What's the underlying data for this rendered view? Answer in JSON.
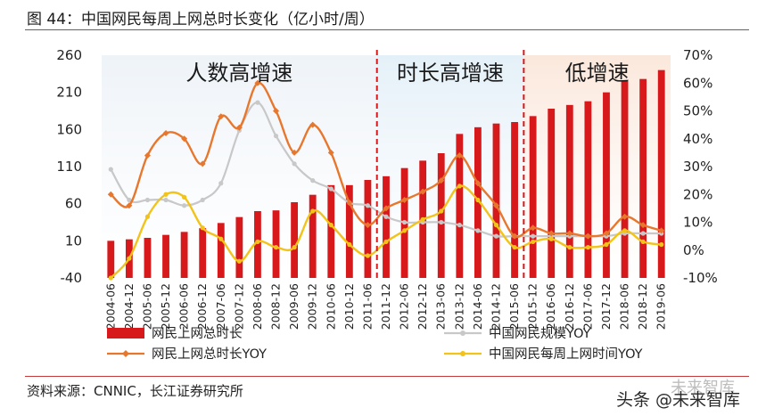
{
  "header": {
    "title": "图 44：中国网民每周上网总时长变化（亿小时/周）"
  },
  "footer": {
    "source": "资料来源：CNNIC，长江证券研究所"
  },
  "watermark": {
    "main": "头条 @未来智库",
    "shadow": "未来智库"
  },
  "colors": {
    "bar": "#d7191c",
    "scale_line": "#c8c8c8",
    "total_yoy": "#e8772e",
    "weekly_yoy": "#f2c318",
    "phase1_bg": "#eef3f8",
    "phase2_bg": "#e4f0f8",
    "phase3_bg": "#fbe8dc",
    "divider": "#d7191c"
  },
  "chart_data": {
    "type": "bar",
    "title": "中国网民每周上网总时长变化（亿小时/周）",
    "categories": [
      "2004-06",
      "2004-12",
      "2005-06",
      "2005-12",
      "2006-06",
      "2006-12",
      "2007-06",
      "2007-12",
      "2008-06",
      "2008-12",
      "2009-06",
      "2009-12",
      "2010-06",
      "2010-12",
      "2011-06",
      "2011-12",
      "2012-06",
      "2012-12",
      "2013-06",
      "2013-12",
      "2014-06",
      "2014-12",
      "2015-06",
      "2015-12",
      "2016-06",
      "2016-12",
      "2017-06",
      "2017-12",
      "2018-06",
      "2018-12",
      "2019-06"
    ],
    "left_axis": {
      "min": -40,
      "max": 260,
      "ticks": [
        "-40",
        "10",
        "60",
        "110",
        "160",
        "210",
        "260"
      ]
    },
    "right_axis": {
      "min": -10,
      "max": 70,
      "ticks": [
        "-10%",
        "0%",
        "10%",
        "20%",
        "30%",
        "40%",
        "50%",
        "60%",
        "70%"
      ]
    },
    "phases": [
      {
        "label": "人数高增速",
        "from": "2004-06",
        "to": "2011-06"
      },
      {
        "label": "时长高增速",
        "from": "2011-12",
        "to": "2015-06"
      },
      {
        "label": "低增速",
        "from": "2015-12",
        "to": "2019-06"
      }
    ],
    "series": [
      {
        "name": "网民上网总时长",
        "type": "bar",
        "axis": "left",
        "values": [
          10,
          12,
          14,
          18,
          22,
          27,
          34,
          42,
          50,
          51,
          62,
          72,
          85,
          85,
          92,
          97,
          108,
          118,
          128,
          154,
          163,
          168,
          170,
          178,
          188,
          193,
          198,
          210,
          225,
          228,
          240
        ]
      },
      {
        "name": "中国网民规模YOY",
        "type": "line",
        "axis": "right",
        "values": [
          29,
          18,
          18,
          18,
          16,
          18,
          24,
          43,
          53,
          41,
          31,
          25,
          22,
          17,
          16,
          12,
          10,
          10,
          10,
          9,
          7,
          5,
          5,
          5,
          5,
          5,
          5,
          5,
          6,
          6,
          6
        ]
      },
      {
        "name": "网民上网总时长YOY",
        "type": "line",
        "axis": "right",
        "values": [
          20,
          16,
          34,
          42,
          40,
          31,
          48,
          44,
          60,
          50,
          35,
          45,
          35,
          17,
          9,
          15,
          18,
          21,
          25,
          34,
          24,
          16,
          5,
          8,
          6,
          6,
          5,
          6,
          12,
          9,
          7
        ]
      },
      {
        "name": "中国网民每周上网时间YOY",
        "type": "line",
        "axis": "right",
        "values": [
          -10,
          -3,
          12,
          20,
          19,
          8,
          4,
          -4,
          3,
          1,
          1,
          14,
          9,
          2,
          -2,
          3,
          7,
          11,
          14,
          23,
          18,
          9,
          1,
          3,
          4,
          1,
          1,
          2,
          7,
          3,
          2
        ]
      }
    ],
    "legend": [
      {
        "name": "网民上网总时长",
        "kind": "bar"
      },
      {
        "name": "中国网民规模YOY",
        "kind": "line-gray"
      },
      {
        "name": "网民上网总时长YOY",
        "kind": "line-orange"
      },
      {
        "name": "中国网民每周上网时间YOY",
        "kind": "line-yellow"
      }
    ]
  }
}
